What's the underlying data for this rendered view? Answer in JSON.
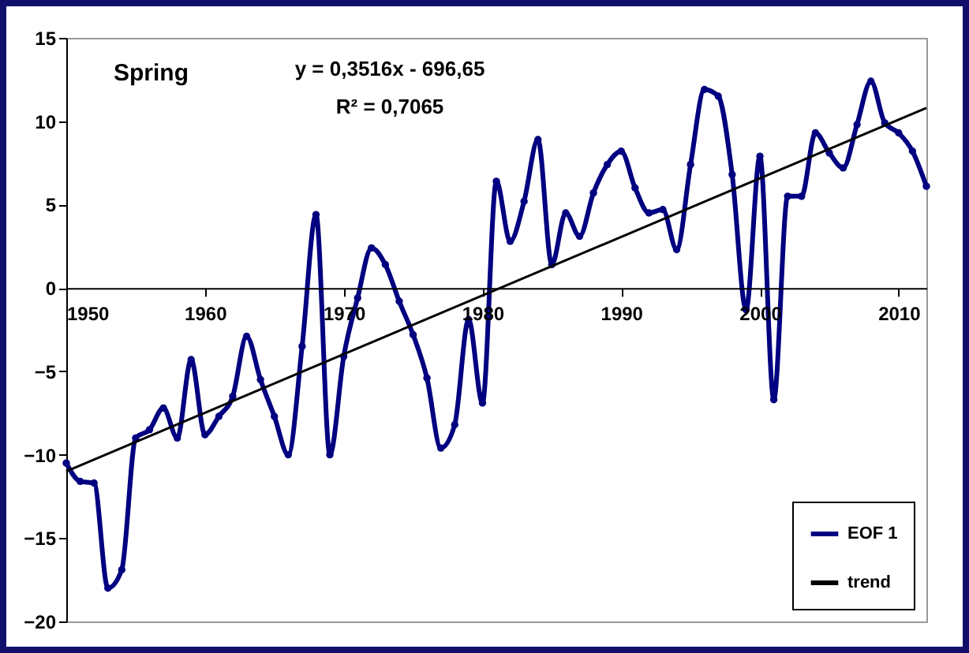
{
  "chart_data": {
    "type": "line",
    "title": "Spring",
    "annotations": [
      "y = 0,3516x - 696,65",
      "R² = 0,7065"
    ],
    "x": [
      1950,
      1951,
      1952,
      1953,
      1954,
      1955,
      1956,
      1957,
      1958,
      1959,
      1960,
      1961,
      1962,
      1963,
      1964,
      1965,
      1966,
      1967,
      1968,
      1969,
      1970,
      1971,
      1972,
      1973,
      1974,
      1975,
      1976,
      1977,
      1978,
      1979,
      1980,
      1981,
      1982,
      1983,
      1984,
      1985,
      1986,
      1987,
      1988,
      1989,
      1990,
      1991,
      1992,
      1993,
      1994,
      1995,
      1996,
      1997,
      1998,
      1999,
      2000,
      2001,
      2002,
      2003,
      2004,
      2005,
      2006,
      2007,
      2008,
      2009,
      2010,
      2011,
      2012
    ],
    "series": [
      {
        "name": "EOF 1",
        "color": "#000080",
        "marker": "circle",
        "values": [
          -10.5,
          -11.6,
          -11.7,
          -18.0,
          -16.9,
          -9.0,
          -8.5,
          -7.2,
          -9.0,
          -4.3,
          -8.8,
          -7.7,
          -6.5,
          -2.9,
          -5.5,
          -7.7,
          -10.0,
          -3.5,
          4.4,
          -10.0,
          -4.1,
          -0.6,
          2.4,
          1.4,
          -0.8,
          -2.8,
          -5.4,
          -9.6,
          -8.2,
          -1.9,
          -6.9,
          6.4,
          2.8,
          5.2,
          8.9,
          1.4,
          4.5,
          3.1,
          5.7,
          7.4,
          8.2,
          6.0,
          4.5,
          4.7,
          2.3,
          7.4,
          11.9,
          11.5,
          6.8,
          -1.3,
          7.9,
          -6.7,
          5.5,
          5.5,
          9.3,
          8.1,
          7.2,
          9.8,
          12.4,
          9.9,
          9.3,
          8.2,
          6.1
        ]
      },
      {
        "name": "trend",
        "color": "#000000",
        "type": "line",
        "marker": "none",
        "x": [
          1950,
          2012
        ],
        "values": [
          -11.0,
          10.8
        ]
      }
    ],
    "xlim": [
      1950,
      2012
    ],
    "xticks": [
      1950,
      1960,
      1970,
      1980,
      1990,
      2000,
      2010
    ],
    "ylim": [
      -20,
      15
    ],
    "yticks": [
      -20,
      -15,
      -10,
      -5,
      0,
      5,
      10,
      15
    ],
    "grid": false,
    "legend": "bottom right",
    "line_style": "solid"
  }
}
